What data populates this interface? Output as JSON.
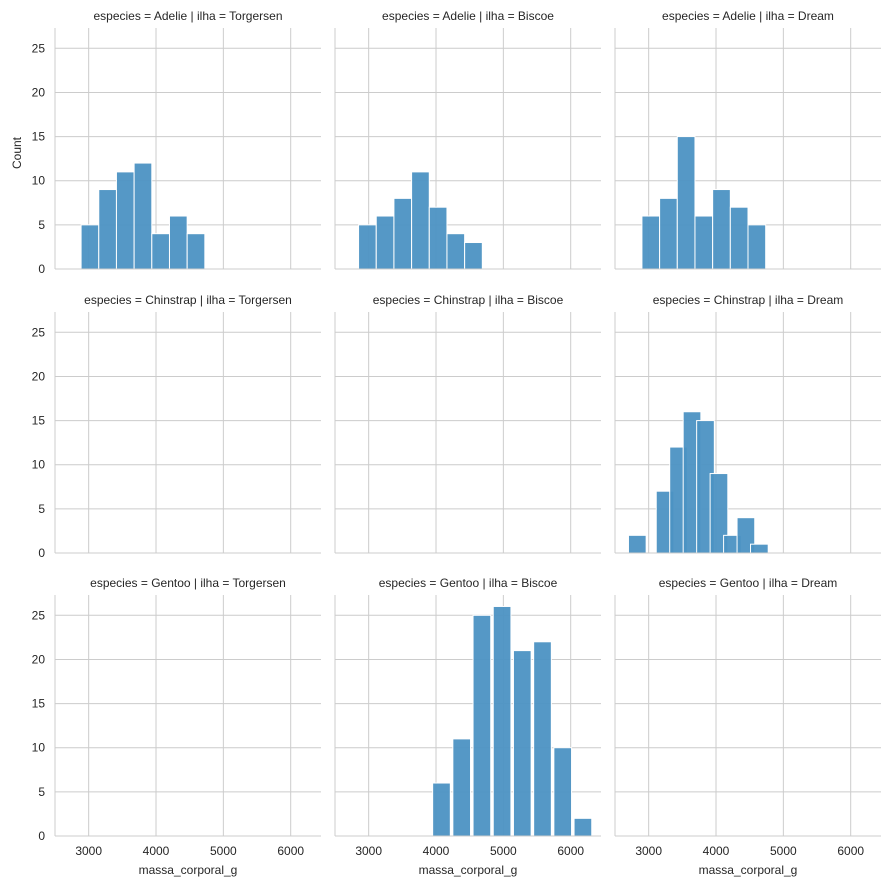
{
  "chart_data": {
    "type": "bar",
    "kind": "histogram",
    "layout": "facet-grid",
    "grid": true,
    "xlabel": "massa_corporal_g",
    "ylabel": "Count",
    "xlim": [
      2500,
      6450
    ],
    "ylim": [
      0,
      27.3
    ],
    "xticks": [
      3000,
      4000,
      5000,
      6000
    ],
    "yticks": [
      0,
      5,
      10,
      15,
      20,
      25
    ],
    "bar_color": "#4c92c3",
    "bin_width": 262.5,
    "panels": [
      {
        "title": "especies = Adelie | ilha = Torgersen",
        "bins": [
          {
            "x0": 2887.5,
            "count": 5
          },
          {
            "x0": 3150,
            "count": 9
          },
          {
            "x0": 3412.5,
            "count": 11
          },
          {
            "x0": 3675,
            "count": 12
          },
          {
            "x0": 3937.5,
            "count": 4
          },
          {
            "x0": 4200,
            "count": 6
          },
          {
            "x0": 4462.5,
            "count": 4
          }
        ]
      },
      {
        "title": "especies = Adelie | ilha = Biscoe",
        "bins": [
          {
            "x0": 2850,
            "count": 5
          },
          {
            "x0": 3112.5,
            "count": 6
          },
          {
            "x0": 3375,
            "count": 8
          },
          {
            "x0": 3637.5,
            "count": 11
          },
          {
            "x0": 3900,
            "count": 7
          },
          {
            "x0": 4162.5,
            "count": 4
          },
          {
            "x0": 4425,
            "count": 3
          }
        ]
      },
      {
        "title": "especies = Adelie | ilha = Dream",
        "bins": [
          {
            "x0": 2900,
            "count": 6
          },
          {
            "x0": 3162.5,
            "count": 8
          },
          {
            "x0": 3425,
            "count": 15
          },
          {
            "x0": 3687.5,
            "count": 6
          },
          {
            "x0": 3950,
            "count": 9
          },
          {
            "x0": 4212.5,
            "count": 7
          },
          {
            "x0": 4475,
            "count": 5
          }
        ]
      },
      {
        "title": "especies = Chinstrap | ilha = Torgersen",
        "bins": []
      },
      {
        "title": "especies = Chinstrap | ilha = Biscoe",
        "bins": []
      },
      {
        "title": "especies = Chinstrap | ilha = Dream",
        "bins": [
          {
            "x0": 2700,
            "count": 2
          },
          {
            "x0": 3112.5,
            "count": 7
          },
          {
            "x0": 3312.5,
            "count": 12
          },
          {
            "x0": 3512.5,
            "count": 16
          },
          {
            "x0": 3712.5,
            "count": 15
          },
          {
            "x0": 3912.5,
            "count": 9
          },
          {
            "x0": 4112.5,
            "count": 2
          },
          {
            "x0": 4312.5,
            "count": 4
          },
          {
            "x0": 4512.5,
            "count": 1
          }
        ]
      },
      {
        "title": "especies = Gentoo | ilha = Torgersen",
        "bins": []
      },
      {
        "title": "especies = Gentoo | ilha = Biscoe",
        "bins": [
          {
            "x0": 3950,
            "count": 6
          },
          {
            "x0": 4250,
            "count": 11
          },
          {
            "x0": 4550,
            "count": 25
          },
          {
            "x0": 4850,
            "count": 26
          },
          {
            "x0": 5150,
            "count": 21
          },
          {
            "x0": 5450,
            "count": 22
          },
          {
            "x0": 5750,
            "count": 10
          },
          {
            "x0": 6050,
            "count": 2
          }
        ]
      },
      {
        "title": "especies = Gentoo | ilha = Dream",
        "bins": []
      }
    ]
  }
}
